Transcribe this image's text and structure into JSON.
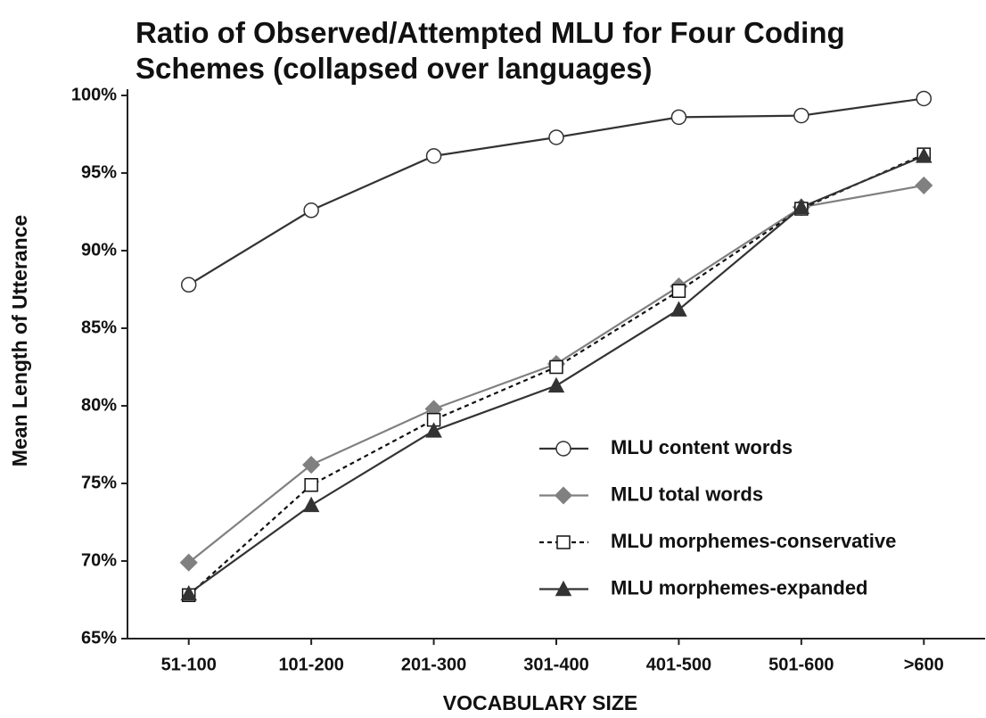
{
  "chart_data": {
    "type": "line",
    "title": [
      "Ratio of Observed/Attempted MLU for Four Coding",
      "Schemes (collapsed over languages)"
    ],
    "x_label": "VOCABULARY SIZE",
    "y_label": "Mean Length of Utterance",
    "categories": [
      "51-100",
      "101-200",
      "201-300",
      "301-400",
      "401-500",
      "501-600",
      ">600"
    ],
    "ylim": [
      65,
      100
    ],
    "yticks": [
      {
        "value": 65,
        "label": "65%"
      },
      {
        "value": 70,
        "label": "70%"
      },
      {
        "value": 75,
        "label": "75%"
      },
      {
        "value": 80,
        "label": "80%"
      },
      {
        "value": 85,
        "label": "85%"
      },
      {
        "value": 90,
        "label": "90%"
      },
      {
        "value": 95,
        "label": "95%"
      },
      {
        "value": 100,
        "label": "100%"
      }
    ],
    "grid": false,
    "legend": "lower right",
    "series": [
      {
        "name": "MLU content words",
        "color": "#333333",
        "marker": "circle",
        "marker_fill": "#ffffff",
        "dashed": false,
        "values": [
          87.8,
          92.6,
          96.1,
          97.3,
          98.6,
          98.7,
          99.8
        ]
      },
      {
        "name": "MLU total words",
        "color": "#808080",
        "marker": "diamond",
        "marker_fill": "#808080",
        "dashed": false,
        "values": [
          69.9,
          76.2,
          79.8,
          82.7,
          87.7,
          92.8,
          94.2
        ]
      },
      {
        "name": "MLU morphemes-conservative",
        "color": "#111111",
        "marker": "square",
        "marker_fill": "#ffffff",
        "dashed": true,
        "values": [
          67.8,
          74.9,
          79.1,
          82.5,
          87.4,
          92.7,
          96.2
        ]
      },
      {
        "name": "MLU morphemes-expanded",
        "color": "#333333",
        "marker": "triangle",
        "marker_fill": "#333333",
        "dashed": false,
        "values": [
          67.9,
          73.6,
          78.4,
          81.3,
          86.2,
          92.8,
          96.1
        ]
      }
    ]
  }
}
